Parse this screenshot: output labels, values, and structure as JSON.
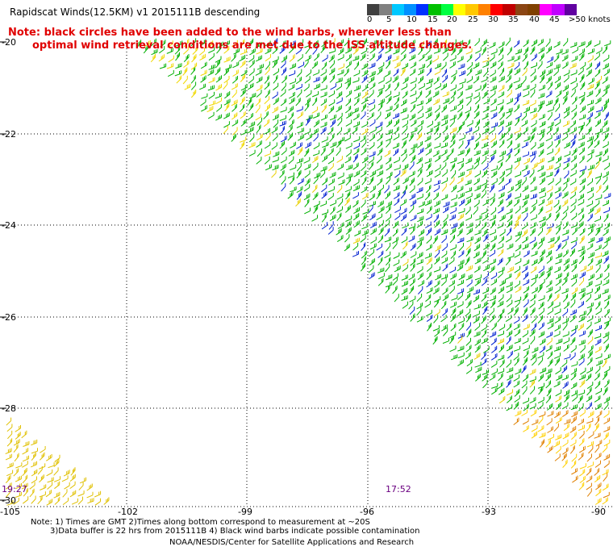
{
  "title": "Rapidscat Winds(12.5KM) v1 2015111B descending",
  "notes": {
    "line1": "Note: black circles have been added to the wind barbs, wherever less than",
    "line2": "optimal wind retrieval conditions are met due to the ISS altitude changes."
  },
  "scale": {
    "colors": [
      "#404040",
      "#808080",
      "#00c8ff",
      "#0090ff",
      "#0030ff",
      "#00c000",
      "#00ff40",
      "#ffff00",
      "#ffc800",
      "#ff8000",
      "#ff0000",
      "#c00000",
      "#8b4513",
      "#804000",
      "#ff00ff",
      "#c000ff",
      "#6000a0"
    ],
    "labels": [
      "0",
      "5",
      "10",
      "15",
      "20",
      "25",
      "30",
      "35",
      "40",
      "45",
      ">50 knots"
    ]
  },
  "axes": {
    "lat_labels": [
      "-20",
      "-22",
      "-24",
      "-26",
      "-28",
      "-30"
    ],
    "lon_labels": [
      "-105",
      "-102",
      "-99",
      "-96",
      "-93",
      "-90"
    ]
  },
  "times": [
    "19:27",
    "17:52"
  ],
  "footnotes": {
    "line1": "Note: 1) Times are GMT 2)Times along bottom correspond to measurement at ~20S",
    "line2": "3)Data buffer is 22 hrs from 2015111B 4) Black wind barbs indicate possible contamination"
  },
  "credit": "NOAA/NESDIS/Center for Satellite Applications and Research"
}
